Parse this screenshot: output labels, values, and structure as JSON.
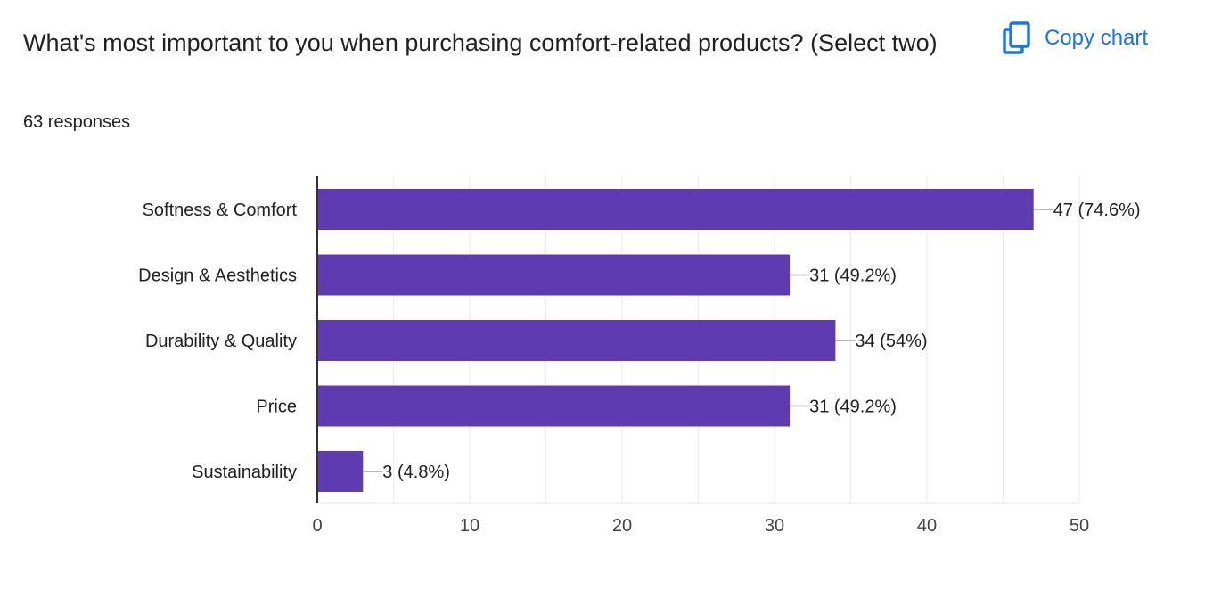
{
  "question": {
    "title": "What's most important to you when purchasing comfort-related products? (Select two)",
    "responses": "63 responses"
  },
  "toolbar": {
    "copy_label": "Copy chart",
    "copy_icon": "copy-icon"
  },
  "colors": {
    "bar": "#5e3bb1",
    "accent": "#1a73e8",
    "grid": "#ececec",
    "axis": "#333333",
    "text": "#202124"
  },
  "chart_data": {
    "type": "bar",
    "orientation": "horizontal",
    "categories": [
      "Softness & Comfort",
      "Design & Aesthetics",
      "Durability & Quality",
      "Price",
      "Sustainability"
    ],
    "values": [
      47,
      31,
      34,
      31,
      3
    ],
    "data_labels": [
      "47 (74.6%)",
      "31 (49.2%)",
      "34 (54%)",
      "31 (49.2%)",
      "3 (4.8%)"
    ],
    "xlim": [
      0,
      50
    ],
    "xticks": [
      0,
      10,
      20,
      30,
      40,
      50
    ],
    "grid": true
  }
}
